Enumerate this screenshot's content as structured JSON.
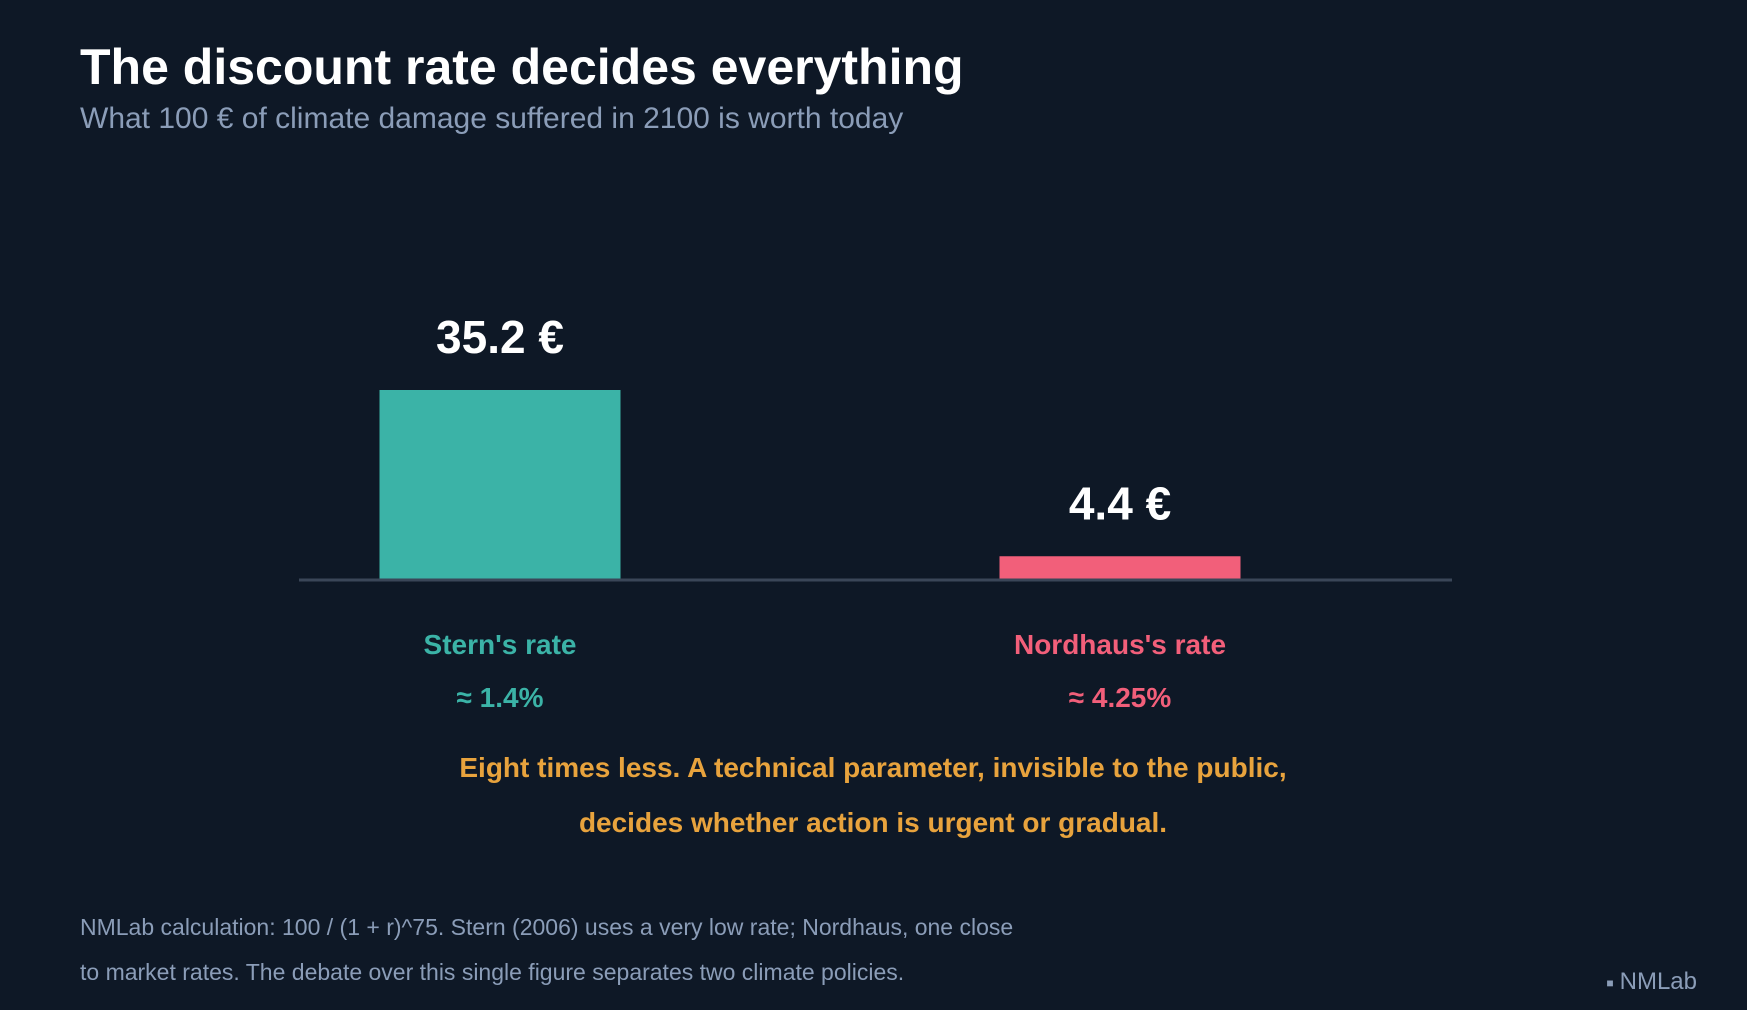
{
  "header": {
    "title": "The discount rate decides everything",
    "subtitle": "What 100 € of climate damage suffered in 2100 is worth today"
  },
  "chart_data": {
    "type": "bar",
    "title": "The discount rate decides everything",
    "subtitle": "What 100 € of climate damage suffered in 2100 is worth today",
    "categories": [
      "Stern's rate",
      "Nordhaus's rate"
    ],
    "rates": [
      "≈ 1.4%",
      "≈ 4.25%"
    ],
    "values": [
      35.2,
      4.4
    ],
    "value_labels": [
      "35.2 €",
      "4.4 €"
    ],
    "colors": [
      "#3bb3a7",
      "#f25f7a"
    ],
    "ylim": [
      0,
      35.2
    ],
    "grid": false,
    "xlabel": "",
    "ylabel": ""
  },
  "callout": {
    "line1": "Eight times less. A technical parameter, invisible to the public,",
    "line2": "decides whether action is urgent or gradual."
  },
  "footnote": {
    "line1": "NMLab calculation: 100 / (1 + r)^75. Stern (2006) uses a very low rate; Nordhaus, one close",
    "line2": "to market rates. The debate over this single figure separates two climate policies."
  },
  "brand": {
    "name": "NMLab"
  },
  "colors": {
    "background": "#0e1826",
    "baseline": "#3a4658",
    "muted_text": "#8b9db8",
    "callout": "#e8a33d"
  }
}
